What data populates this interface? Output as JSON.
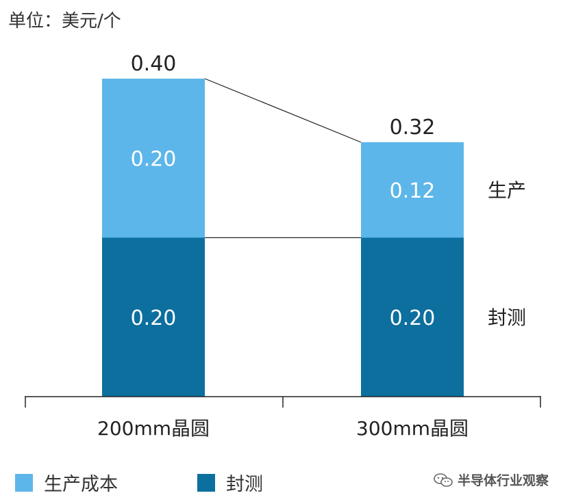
{
  "unit_label": "单位：美元/个",
  "colors": {
    "production": "#5db6e9",
    "packaging": "#0c6f9e"
  },
  "legend": [
    {
      "label": "生产成本",
      "color": "#5db6e9"
    },
    {
      "label": "封测",
      "color": "#0c6f9e"
    }
  ],
  "side_labels": {
    "production": "生产",
    "packaging": "封测"
  },
  "watermark": "半导体行业观察",
  "chart_data": {
    "type": "bar",
    "stacked": true,
    "categories": [
      "200mm晶圆",
      "300mm晶圆"
    ],
    "series": [
      {
        "name": "封测",
        "values": [
          0.2,
          0.2
        ],
        "labels": [
          "0.20",
          "0.20"
        ]
      },
      {
        "name": "生产成本",
        "values": [
          0.2,
          0.12
        ],
        "labels": [
          "0.20",
          "0.12"
        ]
      }
    ],
    "totals": [
      0.4,
      0.32
    ],
    "total_labels": [
      "0.40",
      "0.32"
    ],
    "ylim": [
      0,
      0.4
    ],
    "grid": false
  }
}
